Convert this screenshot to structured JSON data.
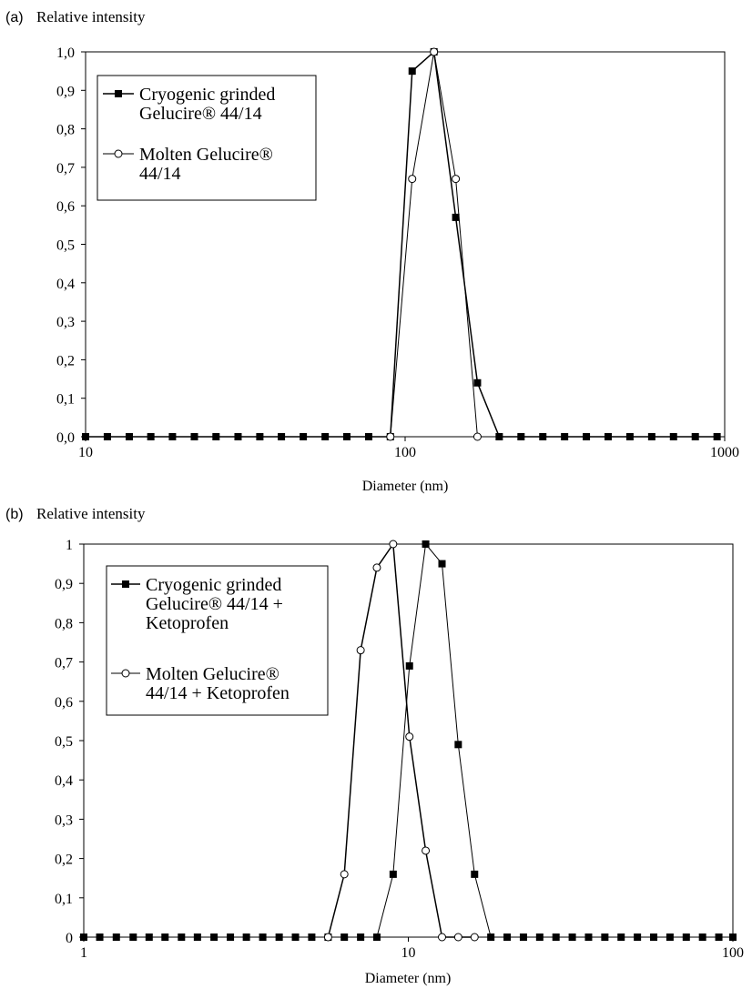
{
  "chart_data": [
    {
      "type": "line",
      "panel_label": "(a)",
      "ylabel": "Relative intensity",
      "xlabel": "Diameter (nm)",
      "xscale": "log",
      "xlim": [
        10,
        1000
      ],
      "ylim": [
        0,
        1
      ],
      "x_ticks": [
        10,
        100,
        1000
      ],
      "x_tick_labels": [
        "10",
        "100",
        "1000"
      ],
      "y_ticks": [
        0,
        0.1,
        0.2,
        0.3,
        0.4,
        0.5,
        0.6,
        0.7,
        0.8,
        0.9,
        1.0
      ],
      "y_tick_labels": [
        "0,0",
        "0,1",
        "0,2",
        "0,3",
        "0,4",
        "0,5",
        "0,6",
        "0,7",
        "0,8",
        "0,9",
        "1,0"
      ],
      "grid": false,
      "legend_position": "top-left",
      "series": [
        {
          "name": "Cryogenic grinded Gelucire® 44/14",
          "legend_lines": [
            "Cryogenic grinded",
            "Gelucire® 44/14"
          ],
          "marker": "filled-square",
          "x": [
            10,
            11.7,
            13.7,
            16.0,
            18.7,
            21.9,
            25.6,
            30.0,
            35.1,
            41.0,
            48.0,
            56.2,
            65.7,
            76.9,
            89.9,
            105.2,
            123.1,
            144.0,
            168.4,
            197.0,
            230.5,
            269.7,
            315.5,
            369.1,
            431.8,
            505.2,
            591.1,
            691.5,
            809.1,
            946.6
          ],
          "y": [
            0,
            0,
            0,
            0,
            0,
            0,
            0,
            0,
            0,
            0,
            0,
            0,
            0,
            0,
            0,
            0.95,
            1.0,
            0.57,
            0.14,
            0,
            0,
            0,
            0,
            0,
            0,
            0,
            0,
            0,
            0,
            0
          ]
        },
        {
          "name": "Molten Gelucire® 44/14",
          "legend_lines": [
            "Molten Gelucire®",
            "44/14"
          ],
          "marker": "open-circle",
          "x": [
            89.9,
            105.2,
            123.1,
            144.0,
            168.4
          ],
          "y": [
            0,
            0.67,
            1.0,
            0.67,
            0
          ]
        }
      ]
    },
    {
      "type": "line",
      "panel_label": "(b)",
      "ylabel": "Relative intensity",
      "xlabel": "Diameter (nm)",
      "xscale": "log",
      "xlim": [
        1,
        100
      ],
      "ylim": [
        0,
        1
      ],
      "x_ticks": [
        1,
        10,
        100
      ],
      "x_tick_labels": [
        "1",
        "10",
        "100"
      ],
      "y_ticks": [
        0,
        0.1,
        0.2,
        0.3,
        0.4,
        0.5,
        0.6,
        0.7,
        0.8,
        0.9,
        1
      ],
      "y_tick_labels": [
        "0",
        "0,1",
        "0,2",
        "0,3",
        "0,4",
        "0,5",
        "0,6",
        "0,7",
        "0,8",
        "0,9",
        "1"
      ],
      "grid": false,
      "legend_position": "top-left",
      "series": [
        {
          "name": "Cryogenic grinded Gelucire® 44/14 + Ketoprofen",
          "legend_lines": [
            "Cryogenic grinded",
            "Gelucire® 44/14 +",
            "Ketoprofen"
          ],
          "marker": "filled-square",
          "x": [
            1.0,
            1.12,
            1.26,
            1.42,
            1.59,
            1.78,
            2.0,
            2.24,
            2.52,
            2.83,
            3.17,
            3.56,
            4.0,
            4.49,
            5.04,
            5.66,
            6.35,
            7.13,
            8.0,
            8.98,
            10.08,
            11.31,
            12.7,
            14.25,
            16.0,
            17.96,
            20.16,
            22.63,
            25.4,
            28.51,
            32.0,
            35.92,
            40.32,
            45.25,
            50.8,
            57.02,
            64.0,
            71.84,
            80.63,
            90.51,
            100.0
          ],
          "y": [
            0,
            0,
            0,
            0,
            0,
            0,
            0,
            0,
            0,
            0,
            0,
            0,
            0,
            0,
            0,
            0,
            0,
            0,
            0,
            0.16,
            0.69,
            1.0,
            0.95,
            0.49,
            0.16,
            0,
            0,
            0,
            0,
            0,
            0,
            0,
            0,
            0,
            0,
            0,
            0,
            0,
            0,
            0,
            0
          ]
        },
        {
          "name": "Molten Gelucire® 44/14 + Ketoprofen",
          "legend_lines": [
            "Molten Gelucire®",
            "44/14 + Ketoprofen"
          ],
          "marker": "open-circle",
          "x": [
            5.66,
            6.35,
            7.13,
            8.0,
            8.98,
            10.08,
            11.31,
            12.7,
            14.25,
            16.0
          ],
          "y": [
            0,
            0.16,
            0.73,
            0.94,
            1.0,
            0.51,
            0.22,
            0,
            0,
            0
          ]
        }
      ]
    }
  ]
}
